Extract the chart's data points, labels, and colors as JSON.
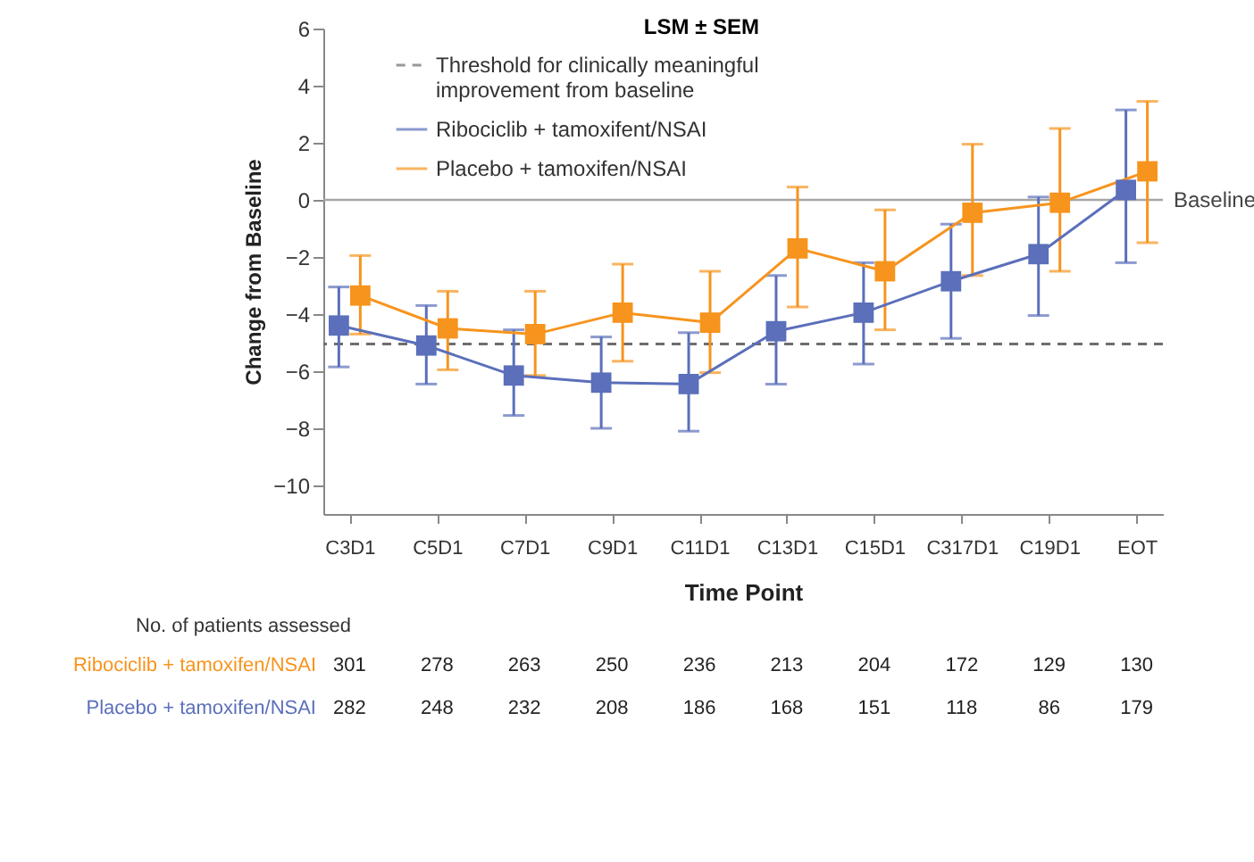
{
  "chart_data": {
    "type": "line",
    "xlabel": "Time Point",
    "ylabel": "Change from Baseline",
    "legend_title": "LSM ± SEM",
    "legend": "top",
    "marker": "square",
    "grid": false,
    "categories": [
      "C3D1",
      "C5D1",
      "C7D1",
      "C9D1",
      "C11D1",
      "C13D1",
      "C15D1",
      "C317D1",
      "C19D1",
      "EOT"
    ],
    "ylim": [
      -11,
      6
    ],
    "yticks": [
      -10,
      -8,
      -6,
      -4,
      -2,
      0,
      2,
      4,
      6
    ],
    "series": [
      {
        "name": "Ribociclib + tamoxifent/NSAI",
        "color": "#5b6fba",
        "values": [
          -4.4,
          -5.1,
          -6.15,
          -6.4,
          -6.45,
          -4.6,
          -3.95,
          -2.85,
          -1.9,
          0.35
        ],
        "errors": [
          [
            -5.85,
            -3.05
          ],
          [
            -6.45,
            -3.7
          ],
          [
            -7.55,
            -4.55
          ],
          [
            -8.0,
            -4.8
          ],
          [
            -8.1,
            -4.65
          ],
          [
            -6.45,
            -2.65
          ],
          [
            -5.75,
            -2.2
          ],
          [
            -4.85,
            -0.85
          ],
          [
            -4.05,
            0.1
          ],
          [
            -2.2,
            3.15
          ]
        ]
      },
      {
        "name": "Placebo + tamoxifen/NSAI",
        "color": "#f7941d",
        "values": [
          -3.35,
          -4.5,
          -4.7,
          -3.95,
          -4.3,
          -1.7,
          -2.5,
          -0.45,
          -0.1,
          1.0
        ],
        "errors": [
          [
            -4.7,
            -1.95
          ],
          [
            -5.95,
            -3.2
          ],
          [
            -6.15,
            -3.2
          ],
          [
            -5.65,
            -2.25
          ],
          [
            -6.05,
            -2.5
          ],
          [
            -3.75,
            0.45
          ],
          [
            -4.55,
            -0.35
          ],
          [
            -2.65,
            1.95
          ],
          [
            -2.5,
            2.5
          ],
          [
            -1.5,
            3.45
          ]
        ]
      }
    ],
    "ref_lines": [
      {
        "axis": "y",
        "value": 0,
        "label": "Baseline",
        "color": "#a6a6a6",
        "line_style": "solid"
      },
      {
        "axis": "y",
        "value": -5.05,
        "label": "Threshold for clinically meaningful improvement from baseline",
        "color": "#6d6d6d",
        "line_style": "dashed"
      }
    ],
    "annotations": [
      "No. of patients assessed",
      "Ribociclib + tamoxifen/NSAI",
      "301",
      "278",
      "263",
      "250",
      "236",
      "213",
      "204",
      "172",
      "129",
      "130",
      "Placebo + tamoxifen/NSAI",
      "282",
      "248",
      "232",
      "208",
      "186",
      "168",
      "151",
      "118",
      "86",
      "179"
    ]
  }
}
